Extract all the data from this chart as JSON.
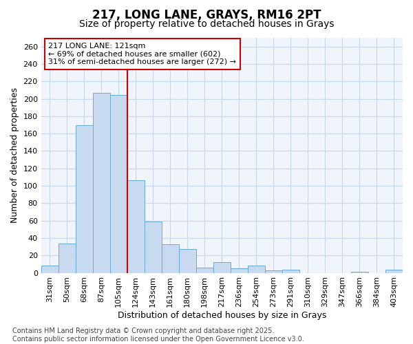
{
  "title_line1": "217, LONG LANE, GRAYS, RM16 2PT",
  "title_line2": "Size of property relative to detached houses in Grays",
  "xlabel": "Distribution of detached houses by size in Grays",
  "ylabel": "Number of detached properties",
  "categories": [
    "31sqm",
    "50sqm",
    "68sqm",
    "87sqm",
    "105sqm",
    "124sqm",
    "143sqm",
    "161sqm",
    "180sqm",
    "198sqm",
    "217sqm",
    "236sqm",
    "254sqm",
    "273sqm",
    "291sqm",
    "310sqm",
    "329sqm",
    "347sqm",
    "366sqm",
    "384sqm",
    "403sqm"
  ],
  "values": [
    8,
    34,
    170,
    207,
    204,
    106,
    59,
    33,
    27,
    6,
    12,
    5,
    8,
    3,
    4,
    0,
    0,
    0,
    1,
    0,
    4
  ],
  "bar_color": "#c8daf0",
  "bar_edge_color": "#6aaad4",
  "redline_index": 5,
  "annotation_text": "217 LONG LANE: 121sqm\n← 69% of detached houses are smaller (602)\n31% of semi-detached houses are larger (272) →",
  "annotation_box_facecolor": "#ffffff",
  "annotation_box_edgecolor": "#cc0000",
  "redline_color": "#cc0000",
  "grid_color": "#c8d8ec",
  "background_color": "#ffffff",
  "plot_bg_color": "#f0f4fb",
  "ylim": [
    0,
    270
  ],
  "yticks": [
    0,
    20,
    40,
    60,
    80,
    100,
    120,
    140,
    160,
    180,
    200,
    220,
    240,
    260
  ],
  "footnote": "Contains HM Land Registry data © Crown copyright and database right 2025.\nContains public sector information licensed under the Open Government Licence v3.0.",
  "title_fontsize": 12,
  "subtitle_fontsize": 10,
  "axis_label_fontsize": 9,
  "tick_fontsize": 8,
  "annotation_fontsize": 8,
  "footnote_fontsize": 7
}
